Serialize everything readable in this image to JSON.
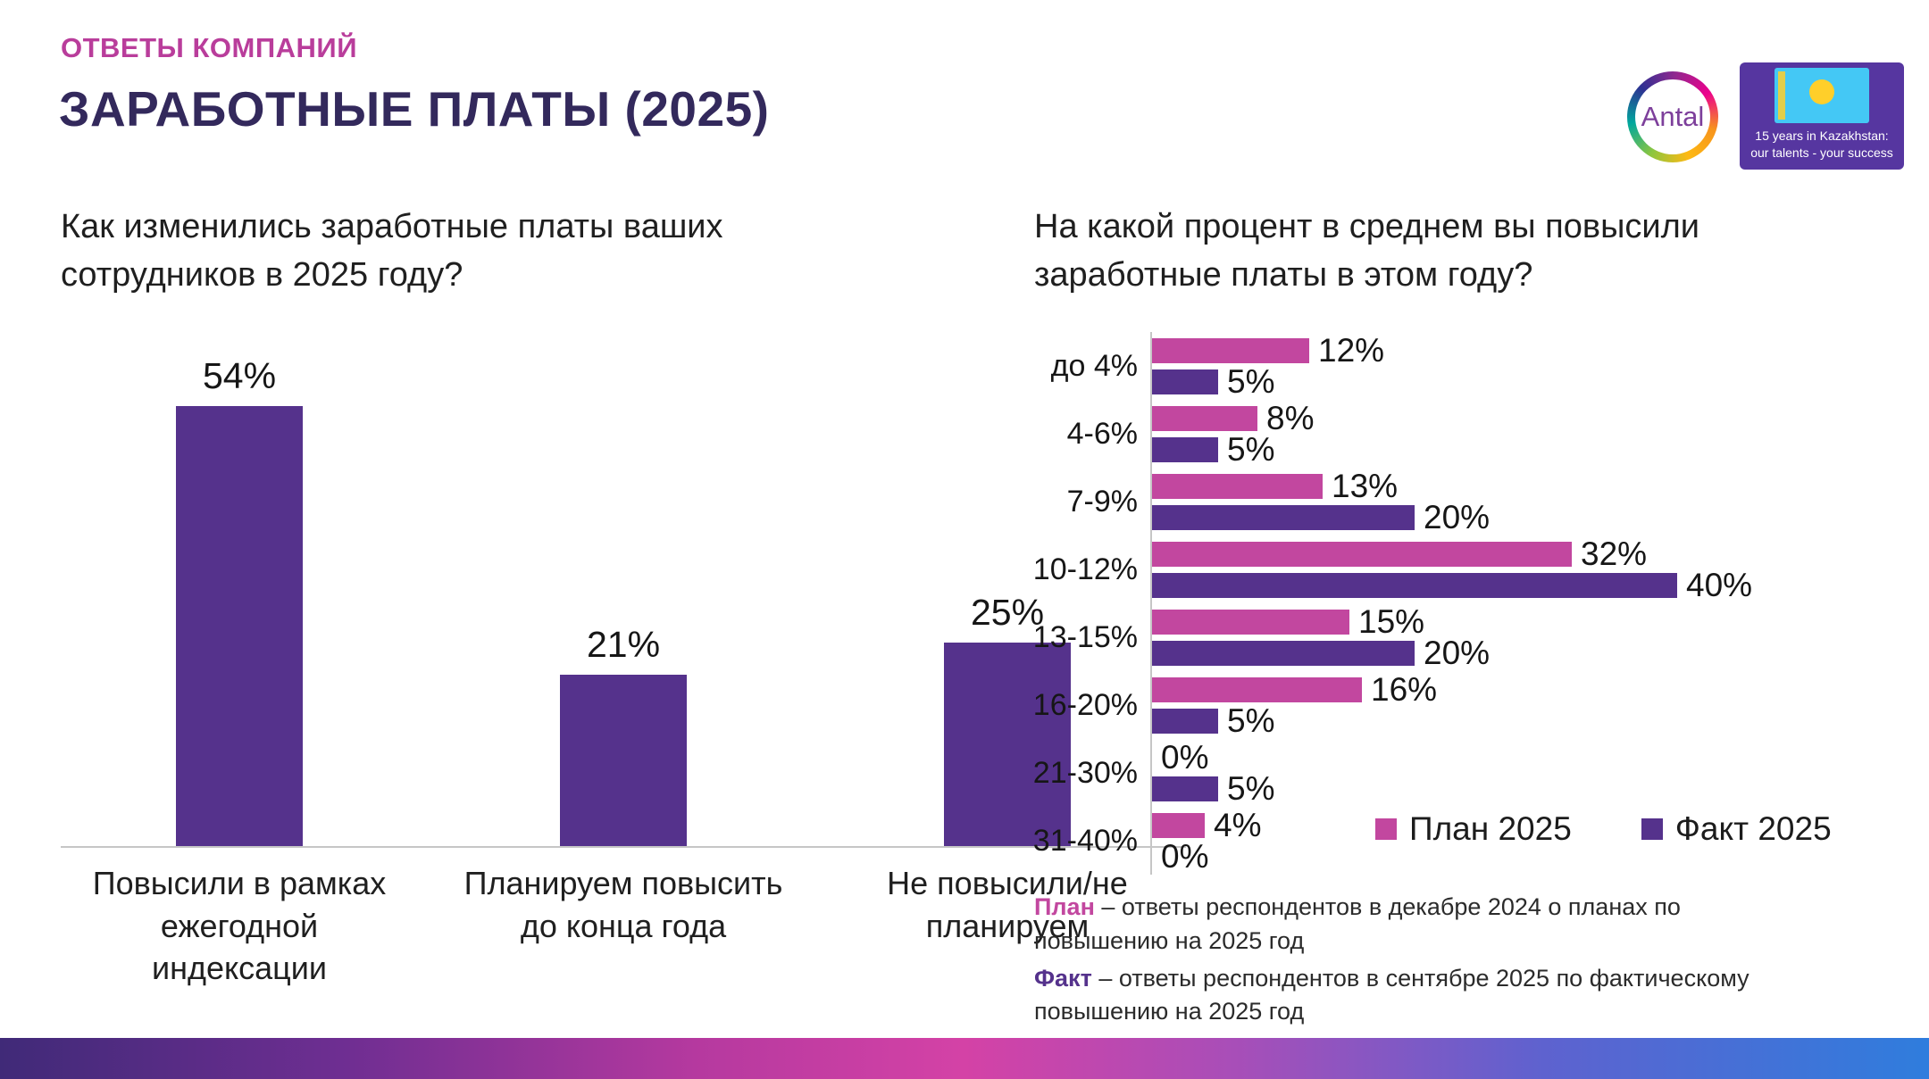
{
  "header": {
    "kicker": "ОТВЕТЫ КОМПАНИЙ",
    "title": "ЗАРАБОТНЫЕ ПЛАТЫ (2025)"
  },
  "branding": {
    "antal_logo_text": "Antal",
    "badge_line1": "15 years in Kazakhstan:",
    "badge_line2": "our talents - your success"
  },
  "colors": {
    "accent_pink": "#b93d9b",
    "title_purple": "#33295c",
    "plan_pink": "#c2479f",
    "fact_purple": "#55328c"
  },
  "chart_data": [
    {
      "type": "bar",
      "title": "Как изменились заработные платы ваших сотрудников в 2025 году?",
      "categories": [
        "Повысили в рамках ежегодной индексации",
        "Планируем повысить до конца года",
        "Не повысили/не планируем"
      ],
      "values": [
        54,
        21,
        25
      ],
      "unit": "%",
      "bar_color": "#55328c",
      "ylim": [
        0,
        60
      ],
      "grid": false
    },
    {
      "type": "bar-horizontal-grouped",
      "title": "На какой процент в среднем вы повысили заработные платы в этом году?",
      "categories": [
        "до 4%",
        "4-6%",
        "7-9%",
        "10-12%",
        "13-15%",
        "16-20%",
        "21-30%",
        "31-40%"
      ],
      "series": [
        {
          "name": "План 2025",
          "color": "#c2479f",
          "values": [
            12,
            8,
            13,
            32,
            15,
            16,
            0,
            4
          ]
        },
        {
          "name": "Факт 2025",
          "color": "#55328c",
          "values": [
            5,
            5,
            20,
            40,
            20,
            5,
            5,
            0
          ]
        }
      ],
      "unit": "%",
      "xlim": [
        0,
        45
      ],
      "legend_position": "inside-bottom-right",
      "grid": false
    }
  ],
  "footnotes": [
    {
      "term": "План",
      "term_color": "#c2479f",
      "text": " – ответы респондентов в декабре 2024 о планах по повышению на 2025 год"
    },
    {
      "term": "Факт",
      "term_color": "#55328c",
      "text": " – ответы респондентов в сентябре 2025 по фактическому повышению на 2025 год"
    }
  ]
}
